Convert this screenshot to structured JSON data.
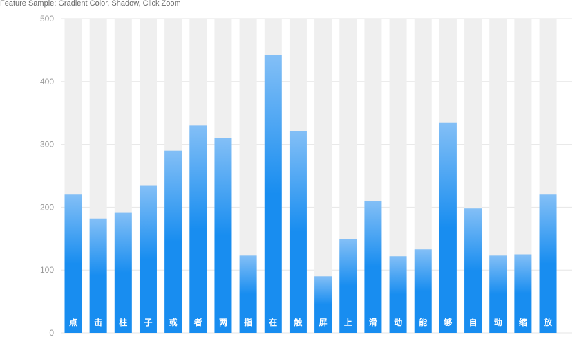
{
  "chart_data": {
    "type": "bar",
    "title": "Feature Sample: Gradient Color, Shadow, Click Zoom",
    "categories": [
      "点",
      "击",
      "柱",
      "子",
      "或",
      "者",
      "两",
      "指",
      "在",
      "触",
      "屏",
      "上",
      "滑",
      "动",
      "能",
      "够",
      "自",
      "动",
      "缩",
      "放"
    ],
    "values": [
      220,
      182,
      191,
      234,
      290,
      330,
      310,
      123,
      442,
      321,
      90,
      149,
      210,
      122,
      133,
      334,
      198,
      123,
      125,
      220
    ],
    "shadow_max": 500,
    "ylim": [
      0,
      500
    ],
    "yticks": [
      "0",
      "100",
      "200",
      "300",
      "400",
      "500"
    ],
    "xlabel": "",
    "ylabel": "",
    "grid": true,
    "colors": {
      "gradient_top": "#83bff6",
      "gradient_mid": "#188df0",
      "gradient_bottom": "#188df0",
      "shadow": "#efefef",
      "grid": "#e6e6e6",
      "axis_text": "#999999",
      "label_text": "#ffffff"
    }
  }
}
